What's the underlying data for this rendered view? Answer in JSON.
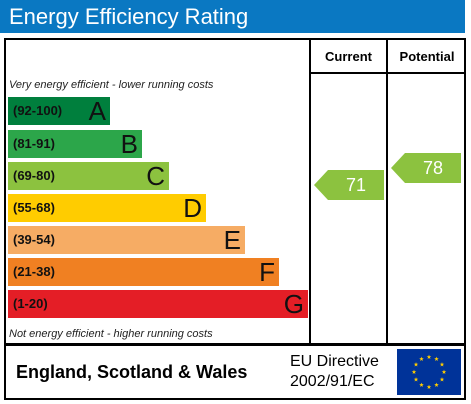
{
  "title": "Energy Efficiency Rating",
  "columns": {
    "current": "Current",
    "potential": "Potential"
  },
  "notes": {
    "top": "Very energy efficient - lower running costs",
    "bottom": "Not energy efficient - higher running costs"
  },
  "bands": [
    {
      "range": "(92-100)",
      "letter": "A",
      "color": "#007f3d"
    },
    {
      "range": "(81-91)",
      "letter": "B",
      "color": "#2ca64a"
    },
    {
      "range": "(69-80)",
      "letter": "C",
      "color": "#8cc23f"
    },
    {
      "range": "(55-68)",
      "letter": "D",
      "color": "#ffcc00"
    },
    {
      "range": "(39-54)",
      "letter": "E",
      "color": "#f6ac64"
    },
    {
      "range": "(21-38)",
      "letter": "F",
      "color": "#f08022"
    },
    {
      "range": "(1-20)",
      "letter": "G",
      "color": "#e41e26"
    }
  ],
  "ratings": {
    "current": {
      "value": "71",
      "color": "#8cc23f"
    },
    "potential": {
      "value": "78",
      "color": "#8cc23f"
    }
  },
  "footer": {
    "region": "England, Scotland & Wales",
    "directive_line1": "EU Directive",
    "directive_line2": "2002/91/EC"
  },
  "colors": {
    "header": "#0a78c2",
    "eu_flag": "#003399",
    "eu_stars": "#ffcc00"
  },
  "icons": {
    "flag": "eu-flag-icon"
  }
}
